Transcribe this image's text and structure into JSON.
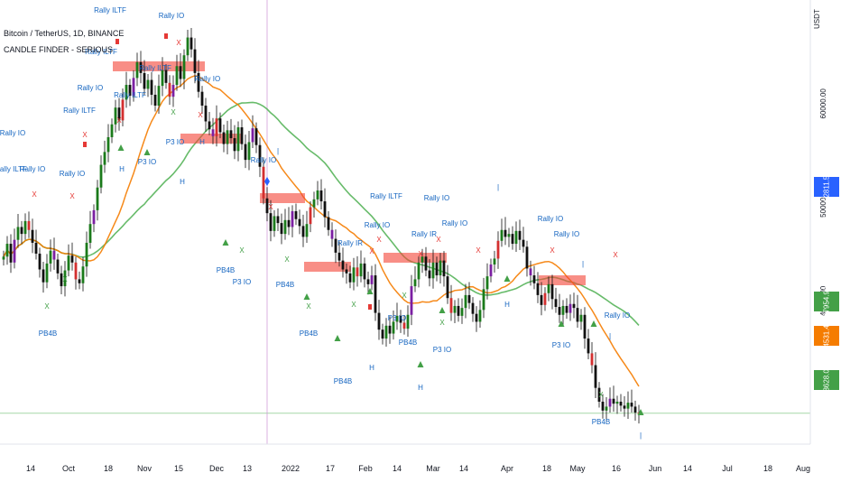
{
  "header": {
    "symbol_line": "Bitcoin / TetherUS, 1D, BINANCE",
    "indicator_line": "CANDLE FINDER - SERIOUS"
  },
  "currency": "USDT",
  "price_tags": [
    {
      "value": "52811.52",
      "color": "#2962ff"
    },
    {
      "value": "37954.93",
      "color": "#43a047"
    },
    {
      "value": "34531.47",
      "color": "#f57c00"
    },
    {
      "value": "28628.08",
      "color": "#43a047"
    }
  ],
  "chart_data": {
    "type": "candlestick",
    "y_axis": {
      "ticks": [
        60000.0,
        50000.0,
        40000.0
      ],
      "tick_labels": [
        "60000.00",
        "50000.00",
        "40000.00"
      ],
      "range": [
        25500,
        70500
      ]
    },
    "x_axis": {
      "tick_labels": [
        "14",
        "Oct",
        "18",
        "Nov",
        "15",
        "Dec",
        "13",
        "2022",
        "17",
        "Feb",
        "14",
        "Mar",
        "14",
        "Apr",
        "18",
        "May",
        "16",
        "Jun",
        "14",
        "Jul",
        "18",
        "Aug"
      ]
    },
    "series": [
      {
        "name": "BTCUSDT",
        "kind": "candles",
        "closes": [
          44500,
          45800,
          43900,
          46200,
          47500,
          46800,
          48100,
          47200,
          45900,
          44800,
          43200,
          41900,
          43800,
          45100,
          44200,
          42800,
          41500,
          43100,
          44600,
          43900,
          42200,
          41800,
          43500,
          45900,
          47800,
          49200,
          51500,
          53800,
          55100,
          56600,
          57900,
          59600,
          58300,
          60400,
          61900,
          60800,
          62600,
          64200,
          63100,
          61500,
          62400,
          60900,
          59800,
          61800,
          63400,
          62100,
          60700,
          61900,
          63800,
          62500,
          64900,
          66700,
          65500,
          63100,
          61200,
          59800,
          58200,
          57400,
          56700,
          58500,
          57100,
          55900,
          57300,
          56500,
          55200,
          57600,
          55900,
          54300,
          56100,
          57500,
          55800,
          53600,
          50400,
          48900,
          47100,
          48600,
          47900,
          46800,
          48200,
          47500,
          49100,
          48300,
          47600,
          46500,
          47800,
          49500,
          50300,
          51200,
          50100,
          48500,
          47200,
          46300,
          44900,
          44100,
          43200,
          42800,
          41900,
          43400,
          42500,
          43800,
          42200,
          41700,
          42600,
          38800,
          37100,
          36200,
          37500,
          36700,
          37900,
          38500,
          37800,
          37200,
          38600,
          41500,
          42200,
          43900,
          44500,
          43100,
          42300,
          43900,
          42600,
          44100,
          42500,
          40300,
          38800,
          39500,
          38500,
          39300,
          40600,
          39800,
          38700,
          37900,
          39100,
          41200,
          42500,
          43700,
          44300,
          46100,
          47200,
          46500,
          46800,
          45800,
          47100,
          46200,
          45500,
          43300,
          42600,
          41800,
          40600,
          39600,
          40800,
          41700,
          40200,
          39400,
          38600,
          39500,
          38800,
          39700,
          39300,
          37900,
          38600,
          36200,
          34700,
          33500,
          31200,
          29800,
          28900,
          29300,
          30100,
          29600,
          29800,
          29400,
          29100,
          29700,
          29300,
          28700,
          28628
        ]
      }
    ],
    "annotations": [
      "Rally IO",
      "Rally ILTF",
      "Rally IR",
      "X",
      "H",
      "P3 IO",
      "PB4B",
      "|"
    ]
  }
}
